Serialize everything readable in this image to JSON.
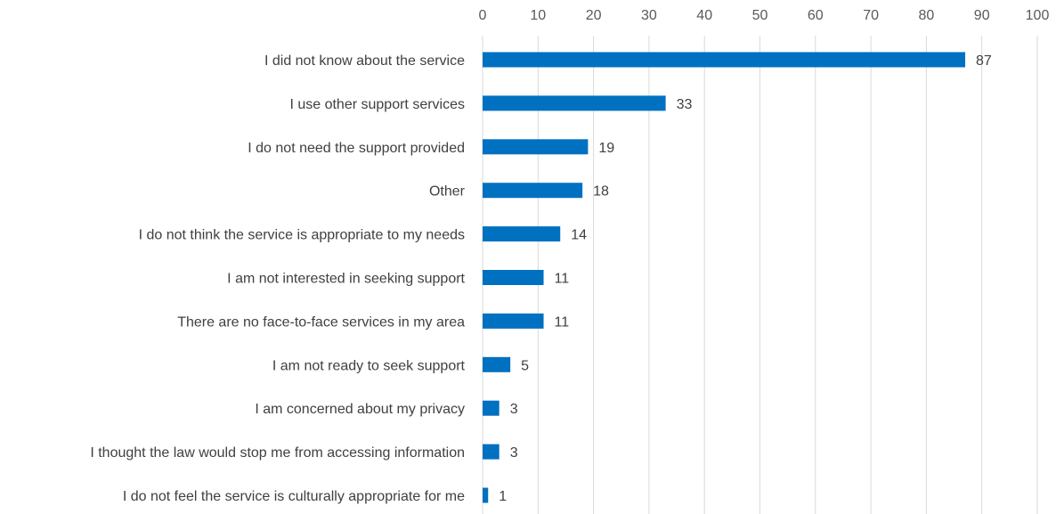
{
  "chart_data": {
    "type": "bar",
    "orientation": "horizontal",
    "title": "",
    "xlabel": "",
    "ylabel": "",
    "xlim": [
      0,
      100
    ],
    "x_ticks": [
      0,
      10,
      20,
      30,
      40,
      50,
      60,
      70,
      80,
      90,
      100
    ],
    "axis_position": "top",
    "grid": true,
    "data_labels": true,
    "bar_color": "#0070c0",
    "categories": [
      "I did not know about the service",
      "I use other support services",
      "I do not need the support provided",
      "Other",
      "I do not think the service is appropriate to my needs",
      "I am not interested in seeking support",
      "There are no face-to-face services in my area",
      "I am not ready to seek support",
      "I am concerned about my privacy",
      "I thought the law would stop me from accessing information",
      "I do not feel the service is culturally appropriate for me"
    ],
    "values": [
      87,
      33,
      19,
      18,
      14,
      11,
      11,
      5,
      3,
      3,
      1
    ]
  }
}
